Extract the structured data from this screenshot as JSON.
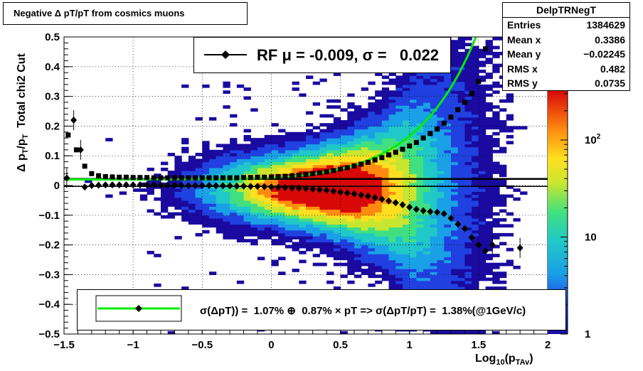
{
  "chart_data": {
    "type": "scatter",
    "title": "Negative Δ pT/pT from cosmics muons",
    "xlabel": "Log10(pTAv)",
    "ylabel": "Δ pT/pT   Total chi2 Cut",
    "xlim": [
      -1.5,
      2.0
    ],
    "ylim": [
      -0.5,
      0.5
    ],
    "x_ticks": [
      "−1.5",
      "−1",
      "−0.5",
      "0",
      "0.5",
      "1",
      "1.5",
      "2"
    ],
    "y_ticks": [
      "−0.5",
      "−0.4",
      "−0.3",
      "−0.2",
      "−0.1",
      "0",
      "0.1",
      "0.2",
      "0.3",
      "0.4",
      "0.5"
    ],
    "grid": true,
    "colorbar": {
      "scale": "log",
      "ticks": [
        "1",
        "10",
        "10^2"
      ]
    },
    "stats": {
      "name": "DelpTRNegT",
      "entries": "1384629",
      "mean_x": "0.3386",
      "mean_y": "−0.02245",
      "rms_x": "0.482",
      "rms_y": "0.0735"
    },
    "rf_label": "RF μ = -0.009, σ =   0.022",
    "fit_label": "σ(ΔpT)) =  1.07% ⊕  0.87% × pT => σ(ΔpT/pT) =  1.38%(@1GeV/c)",
    "fit_curve": {
      "sigma_const": 0.0107,
      "sigma_slope": 0.0087
    },
    "rms_upper": {
      "x": [
        -1.47,
        -1.41,
        -1.35,
        -1.3,
        -1.25,
        -1.2,
        -1.15,
        -1.1,
        -1.05,
        -1.0,
        -0.95,
        -0.9,
        -0.85,
        -0.8,
        -0.75,
        -0.7,
        -0.65,
        -0.6,
        -0.55,
        -0.5,
        -0.45,
        -0.4,
        -0.35,
        -0.3,
        -0.25,
        -0.2,
        -0.15,
        -0.1,
        -0.05,
        0.0,
        0.05,
        0.1,
        0.15,
        0.2,
        0.25,
        0.3,
        0.35,
        0.4,
        0.45,
        0.5,
        0.55,
        0.6,
        0.65,
        0.7,
        0.75,
        0.8,
        0.85,
        0.9,
        0.95,
        1.0,
        1.05,
        1.1,
        1.15,
        1.2,
        1.25,
        1.3,
        1.35,
        1.4,
        1.45,
        1.5,
        1.55
      ],
      "y": [
        0.17,
        0.12,
        0.065,
        0.04,
        0.033,
        0.03,
        0.029,
        0.028,
        0.028,
        0.027,
        0.027,
        0.027,
        0.026,
        0.026,
        0.026,
        0.026,
        0.026,
        0.026,
        0.026,
        0.026,
        0.026,
        0.026,
        0.026,
        0.026,
        0.026,
        0.027,
        0.027,
        0.028,
        0.028,
        0.029,
        0.03,
        0.031,
        0.033,
        0.035,
        0.037,
        0.04,
        0.043,
        0.046,
        0.05,
        0.055,
        0.06,
        0.066,
        0.072,
        0.078,
        0.086,
        0.094,
        0.103,
        0.112,
        0.122,
        0.133,
        0.145,
        0.16,
        0.175,
        0.19,
        0.21,
        0.23,
        0.255,
        0.28,
        0.31,
        0.35,
        0.46
      ]
    },
    "rms_lower": {
      "x": [
        -1.35,
        -1.3,
        -1.25,
        -1.2,
        -1.15,
        -1.1,
        -1.05,
        -1.0,
        -0.95,
        -0.9,
        -0.85,
        -0.8,
        -0.75,
        -0.7,
        -0.65,
        -0.6,
        -0.55,
        -0.5,
        -0.45,
        -0.4,
        -0.35,
        -0.3,
        -0.25,
        -0.2,
        -0.15,
        -0.1,
        -0.05,
        0.0,
        0.05,
        0.1,
        0.15,
        0.2,
        0.25,
        0.3,
        0.35,
        0.4,
        0.45,
        0.5,
        0.55,
        0.6,
        0.65,
        0.7,
        0.75,
        0.8,
        0.85,
        0.9,
        0.95,
        1.0,
        1.05,
        1.1,
        1.15,
        1.2,
        1.25,
        1.3,
        1.35,
        1.4,
        1.45,
        1.5,
        1.55
      ],
      "y": [
        -0.005,
        0.0,
        0.001,
        0.002,
        0.002,
        0.002,
        0.002,
        0.002,
        0.002,
        0.002,
        0.002,
        0.001,
        0.001,
        0.001,
        0.0,
        0.0,
        0.0,
        0.0,
        0.0,
        -0.001,
        -0.001,
        -0.001,
        -0.002,
        -0.002,
        -0.003,
        -0.003,
        -0.004,
        -0.005,
        -0.006,
        -0.007,
        -0.008,
        -0.009,
        -0.01,
        -0.012,
        -0.014,
        -0.016,
        -0.019,
        -0.022,
        -0.025,
        -0.028,
        -0.032,
        -0.036,
        -0.041,
        -0.046,
        -0.052,
        -0.058,
        -0.065,
        -0.073,
        -0.08,
        -0.085,
        -0.088,
        -0.09,
        -0.095,
        -0.11,
        -0.13,
        -0.145,
        -0.175,
        -0.2,
        -0.22
      ]
    },
    "extra_points": [
      {
        "x": -1.48,
        "y": 0.025
      },
      {
        "x": -1.43,
        "y": 0.22
      },
      {
        "x": -1.38,
        "y": 0.12
      },
      {
        "x": 1.6,
        "y": -0.2
      },
      {
        "x": 1.8,
        "y": -0.21
      }
    ],
    "colors": {
      "fit": "#00ee00",
      "marker": "#000000",
      "hline": "#000000"
    }
  }
}
